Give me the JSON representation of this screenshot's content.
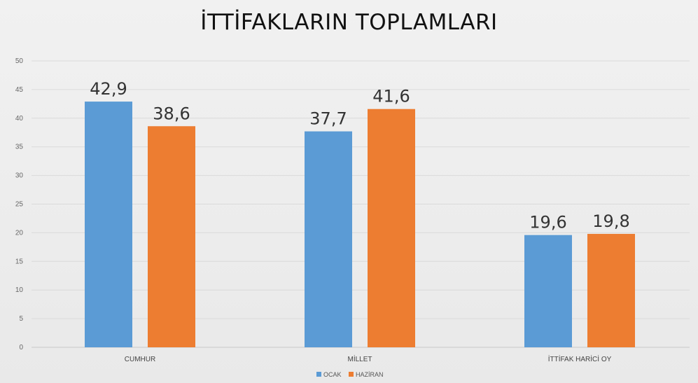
{
  "chart_data": {
    "type": "bar",
    "title": "İTTİFAKLARIN TOPLAMLARI",
    "categories": [
      "CUMHUR",
      "MİLLET",
      "İTTİFAK HARİCİ OY"
    ],
    "series": [
      {
        "name": "OCAK",
        "values": [
          42.9,
          37.7,
          19.6
        ],
        "labels": [
          "42,9",
          "37,7",
          "19,6"
        ],
        "color": "#5b9bd5"
      },
      {
        "name": "HAZİRAN",
        "values": [
          38.6,
          41.6,
          19.8
        ],
        "labels": [
          "38,6",
          "41,6",
          "19,8"
        ],
        "color": "#ed7d31"
      }
    ],
    "ylim": [
      0,
      50
    ],
    "yticks": [
      0,
      5,
      10,
      15,
      20,
      25,
      30,
      35,
      40,
      45,
      50
    ],
    "xlabel": "",
    "ylabel": "",
    "grid": true,
    "legend": "bottom-center"
  }
}
